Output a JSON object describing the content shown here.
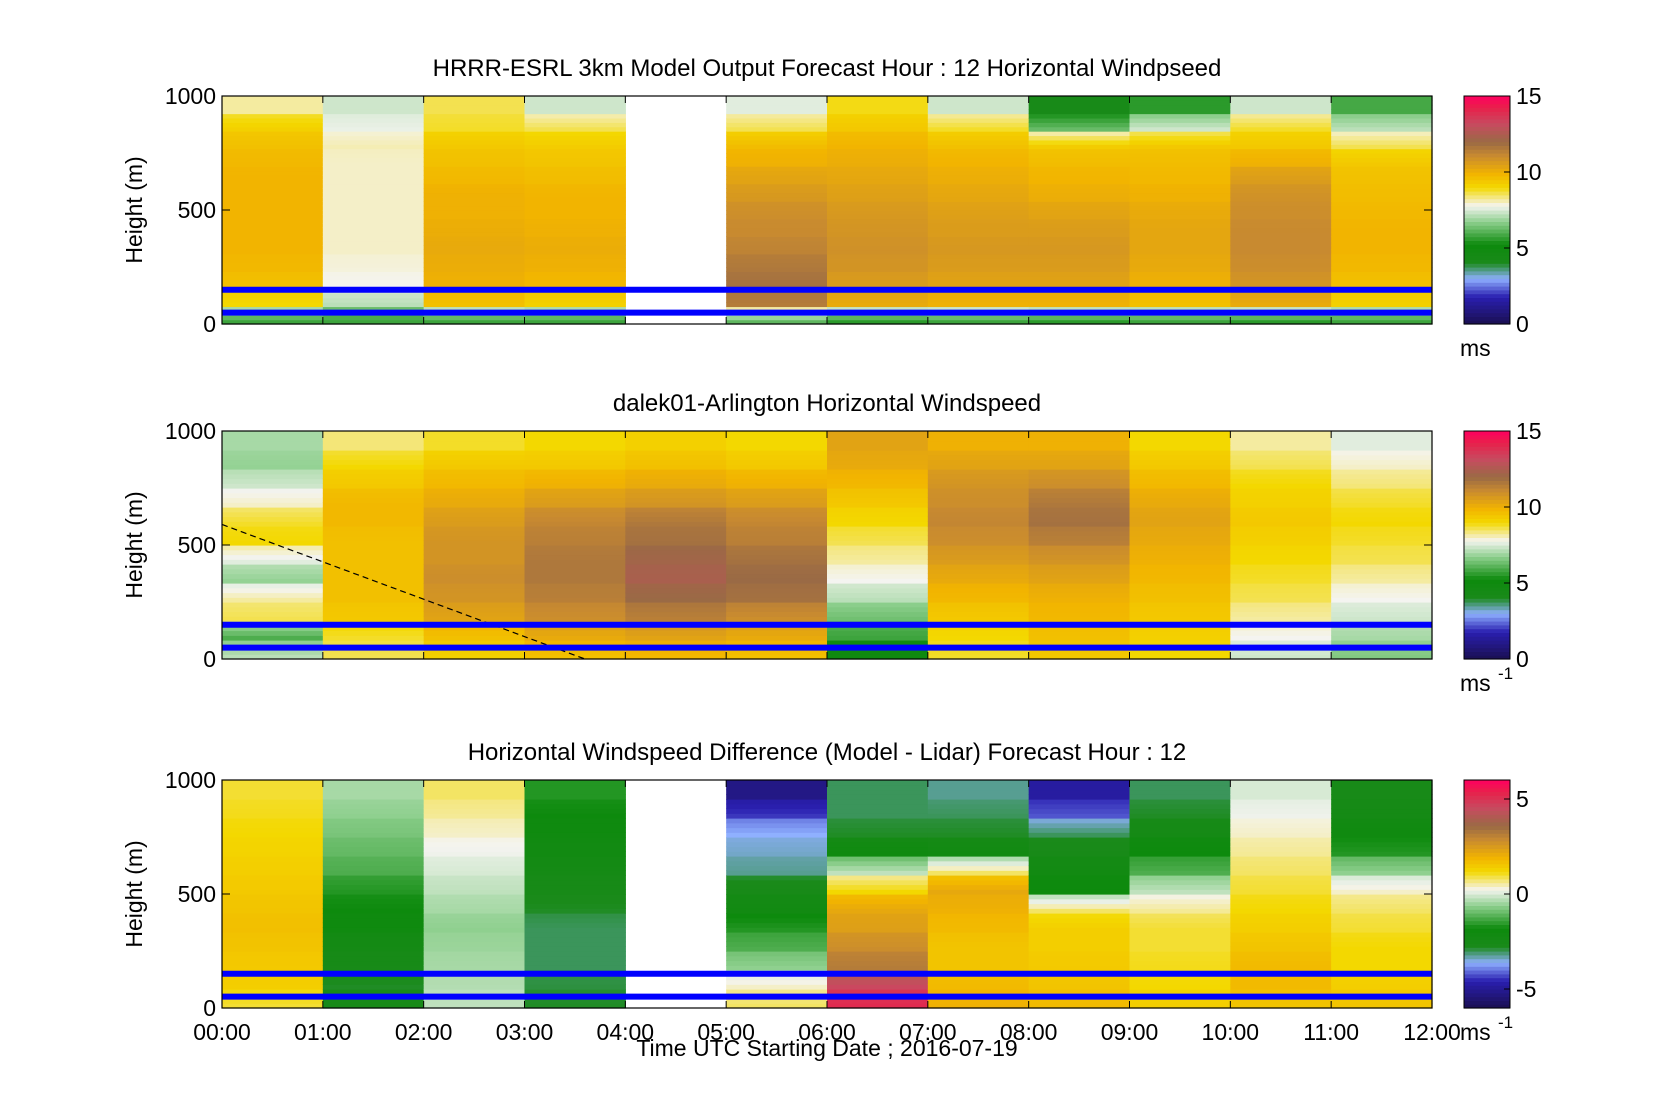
{
  "figure": {
    "xlabel": "Time UTC  Starting Date ; 2016-07-19",
    "x_ticks": [
      "00:00",
      "01:00",
      "02:00",
      "03:00",
      "04:00",
      "05:00",
      "06:00",
      "07:00",
      "08:00",
      "09:00",
      "10:00",
      "11:00",
      "12:00"
    ],
    "ylabel": "Height (m)",
    "y_ticks": [
      "0",
      "500",
      "1000"
    ],
    "reference_lines_m": [
      50,
      150
    ],
    "reference_line_color": "#0000ff"
  },
  "chart_data": [
    {
      "type": "heatmap",
      "title": "HRRR-ESRL 3km Model Output   Forecast Hour : 12 Horizontal Windpseed",
      "xlabel": "",
      "ylabel": "Height (m)",
      "xlim": [
        0,
        12
      ],
      "ylim": [
        0,
        1000
      ],
      "colorbar": {
        "ticks": [
          "0",
          "5",
          "10",
          "15"
        ],
        "range": [
          0,
          15
        ],
        "unit": "ms",
        "unit_sup": ""
      },
      "colorscale": [
        [
          0,
          "#1a0f50"
        ],
        [
          0.12,
          "#2a1fb0"
        ],
        [
          0.2,
          "#8fb0ff"
        ],
        [
          0.27,
          "#1a8a1a"
        ],
        [
          0.35,
          "#0d8a0d"
        ],
        [
          0.45,
          "#8fd08f"
        ],
        [
          0.52,
          "#f4f4f0"
        ],
        [
          0.6,
          "#f3d800"
        ],
        [
          0.66,
          "#f2b400"
        ],
        [
          0.74,
          "#c88a30"
        ],
        [
          0.8,
          "#9a6a45"
        ],
        [
          0.88,
          "#c84a60"
        ],
        [
          0.95,
          "#e8204a"
        ],
        [
          1,
          "#ff0060"
        ]
      ],
      "z_layout": "hour columns, rows bottom (0 m) to top (1000 m)",
      "z": [
        [
          5.8,
          9,
          9.6,
          9.8,
          9.9,
          9.9,
          9.9,
          9.9,
          9.9,
          9.8,
          9.6,
          9.2,
          8.2
        ],
        [
          5.8,
          7.2,
          7.8,
          7.9,
          8.0,
          8.0,
          8.0,
          8.0,
          8.0,
          8.0,
          8.1,
          7.7,
          7.4
        ],
        [
          5.8,
          9.6,
          10.0,
          10.1,
          10.2,
          10.1,
          10.0,
          10.0,
          9.8,
          9.6,
          9.4,
          8.8,
          8.6
        ],
        [
          5.8,
          9.2,
          9.8,
          10.0,
          10.1,
          10.0,
          9.9,
          9.9,
          9.7,
          9.5,
          9.3,
          8.6,
          7.4
        ],
        null,
        [
          6.2,
          11.5,
          11.8,
          11.6,
          11.3,
          11.1,
          11.0,
          10.7,
          10.4,
          10.0,
          9.7,
          8.6,
          7.6
        ],
        [
          5.6,
          10.2,
          10.6,
          10.8,
          10.9,
          10.8,
          10.7,
          10.5,
          10.3,
          10.1,
          9.9,
          9.4,
          8.9
        ],
        [
          5.8,
          10.0,
          10.4,
          10.6,
          10.7,
          10.6,
          10.5,
          10.3,
          10.1,
          9.9,
          9.6,
          8.8,
          7.4
        ],
        [
          5.6,
          10.0,
          10.4,
          10.6,
          10.7,
          10.6,
          10.4,
          10.1,
          9.9,
          9.7,
          9.3,
          6.3,
          4.2
        ],
        [
          5.8,
          9.6,
          10.0,
          10.2,
          10.3,
          10.3,
          10.2,
          10.0,
          9.8,
          9.7,
          9.4,
          7.4,
          5.6
        ],
        [
          5.6,
          10.2,
          10.8,
          11.0,
          11.1,
          11.1,
          11.0,
          10.9,
          10.6,
          10.0,
          9.4,
          8.8,
          7.4
        ],
        [
          5.8,
          9.2,
          9.6,
          9.8,
          9.9,
          9.9,
          9.8,
          9.7,
          9.6,
          9.4,
          8.6,
          7.2,
          5.9
        ]
      ]
    },
    {
      "type": "heatmap",
      "title": "dalek01-Arlington  Horizontal Windspeed",
      "xlabel": "",
      "ylabel": "Height (m)",
      "xlim": [
        0,
        12
      ],
      "ylim": [
        0,
        1000
      ],
      "colorbar": {
        "ticks": [
          "0",
          "5",
          "10",
          "15"
        ],
        "range": [
          0,
          15
        ],
        "unit": "ms",
        "unit_sup": "-1"
      },
      "colorscale": [
        [
          0,
          "#1a0f50"
        ],
        [
          0.12,
          "#2a1fb0"
        ],
        [
          0.2,
          "#8fb0ff"
        ],
        [
          0.27,
          "#1a8a1a"
        ],
        [
          0.35,
          "#0d8a0d"
        ],
        [
          0.45,
          "#8fd08f"
        ],
        [
          0.52,
          "#f4f4f0"
        ],
        [
          0.6,
          "#f3d800"
        ],
        [
          0.66,
          "#f2b400"
        ],
        [
          0.74,
          "#c88a30"
        ],
        [
          0.8,
          "#9a6a45"
        ],
        [
          0.88,
          "#c84a60"
        ],
        [
          0.95,
          "#e8204a"
        ],
        [
          1,
          "#ff0060"
        ]
      ],
      "z_layout": "hour columns, rows bottom (0 m) to top (1000 m)",
      "z": [
        [
          7.2,
          6.0,
          8.6,
          8.2,
          6.8,
          7.6,
          9.0,
          8.8,
          8.0,
          7.4,
          6.8,
          7.0
        ],
        [
          8.6,
          8.8,
          9.4,
          9.6,
          9.6,
          9.6,
          9.6,
          9.8,
          9.8,
          9.4,
          9.0,
          8.4
        ],
        [
          9.2,
          9.6,
          10.4,
          10.8,
          11.0,
          10.8,
          10.8,
          10.6,
          10.2,
          9.8,
          9.4,
          8.8
        ],
        [
          9.6,
          10.2,
          11.0,
          11.4,
          11.6,
          11.6,
          11.4,
          11.2,
          10.6,
          10.0,
          9.4,
          9.0
        ],
        [
          9.8,
          10.4,
          11.4,
          12.0,
          12.4,
          12.2,
          11.8,
          11.6,
          10.8,
          10.2,
          9.6,
          9.2
        ],
        [
          9.6,
          10.2,
          11.0,
          11.8,
          12.0,
          11.8,
          11.4,
          11.2,
          10.6,
          10.0,
          9.4,
          9.0
        ],
        [
          5.0,
          5.8,
          6.4,
          7.2,
          7.8,
          8.2,
          8.6,
          9.0,
          9.4,
          9.8,
          10.2,
          10.4
        ],
        [
          8.8,
          9.0,
          9.4,
          9.8,
          10.2,
          10.6,
          11.0,
          11.2,
          11.0,
          10.8,
          10.4,
          10.0
        ],
        [
          9.4,
          9.6,
          9.8,
          10.0,
          10.4,
          10.8,
          11.4,
          11.8,
          11.6,
          11.0,
          10.4,
          10.0
        ],
        [
          9.0,
          9.2,
          9.4,
          9.6,
          9.8,
          10.0,
          10.2,
          10.4,
          10.2,
          9.8,
          9.4,
          9.0
        ],
        [
          7.4,
          7.8,
          8.2,
          8.6,
          8.8,
          9.0,
          9.2,
          9.4,
          9.2,
          9.0,
          8.6,
          8.2
        ],
        [
          6.6,
          7.0,
          7.4,
          7.8,
          8.2,
          8.6,
          8.8,
          9.0,
          8.8,
          8.4,
          8.0,
          7.6
        ]
      ],
      "dashed_line": {
        "x": [
          0.0,
          3.6
        ],
        "y": [
          590,
          0
        ]
      }
    },
    {
      "type": "heatmap",
      "title": "Horizontal Windspeed Difference (Model - Lidar) Forecast Hour : 12",
      "xlabel": "Time UTC  Starting Date ; 2016-07-19",
      "ylabel": "Height (m)",
      "xlim": [
        0,
        12
      ],
      "ylim": [
        0,
        1000
      ],
      "colorbar": {
        "ticks": [
          "-5",
          "0",
          "5"
        ],
        "range": [
          -6,
          6
        ],
        "unit": "ms",
        "unit_sup": "-1"
      },
      "colorscale": [
        [
          0,
          "#1a0f50"
        ],
        [
          0.12,
          "#2a1fb0"
        ],
        [
          0.2,
          "#8fb0ff"
        ],
        [
          0.27,
          "#1a8a1a"
        ],
        [
          0.35,
          "#0d8a0d"
        ],
        [
          0.45,
          "#8fd08f"
        ],
        [
          0.52,
          "#f4f4f0"
        ],
        [
          0.6,
          "#f3d800"
        ],
        [
          0.66,
          "#f2b400"
        ],
        [
          0.74,
          "#c88a30"
        ],
        [
          0.8,
          "#9a6a45"
        ],
        [
          0.88,
          "#c84a60"
        ],
        [
          0.95,
          "#e8204a"
        ],
        [
          1,
          "#ff0060"
        ]
      ],
      "z_layout": "hour columns, rows bottom (0 m) to top (1000 m)",
      "z": [
        [
          1.0,
          1.4,
          1.5,
          1.6,
          1.7,
          1.6,
          1.5,
          1.4,
          1.3,
          1.2,
          1.1,
          1.0
        ],
        [
          -2.6,
          -2.8,
          -2.6,
          -2.4,
          -2.0,
          -1.8,
          -1.6,
          -1.2,
          -1.0,
          -0.8,
          -0.6,
          -0.4
        ],
        [
          -0.2,
          -0.3,
          -0.4,
          -0.5,
          -0.6,
          -0.4,
          -0.2,
          0.0,
          0.2,
          0.4,
          0.6,
          0.8
        ],
        [
          -2.8,
          -2.9,
          -3.0,
          -3.0,
          -3.0,
          -2.8,
          -2.6,
          -2.4,
          -2.2,
          -2.0,
          -1.8,
          -1.6
        ],
        null,
        [
          0.8,
          0.4,
          -0.6,
          -1.2,
          -1.6,
          -2.2,
          -2.6,
          -3.2,
          -3.4,
          -3.6,
          -4.4,
          -5.2
        ],
        [
          5.2,
          4.6,
          3.2,
          2.8,
          2.4,
          2.2,
          1.2,
          -0.2,
          -2.0,
          -2.8,
          -3.0,
          -3.0
        ],
        [
          2.0,
          1.8,
          1.6,
          1.6,
          1.8,
          2.0,
          2.2,
          0.8,
          -2.2,
          -2.8,
          -3.0,
          -3.2
        ],
        [
          1.8,
          1.6,
          1.5,
          1.4,
          1.4,
          0.8,
          -1.8,
          -2.2,
          -2.6,
          -3.0,
          -4.2,
          -4.8
        ],
        [
          1.4,
          1.2,
          1.1,
          1.0,
          1.0,
          0.6,
          -0.2,
          -1.2,
          -1.8,
          -2.4,
          -2.8,
          -3.0
        ],
        [
          1.6,
          1.8,
          1.8,
          1.6,
          1.4,
          1.2,
          1.0,
          0.8,
          0.6,
          0.4,
          0.2,
          0.0
        ],
        [
          1.6,
          1.4,
          1.2,
          1.2,
          1.0,
          0.8,
          0.4,
          -0.6,
          -1.6,
          -2.0,
          -2.4,
          -2.6
        ]
      ]
    }
  ]
}
